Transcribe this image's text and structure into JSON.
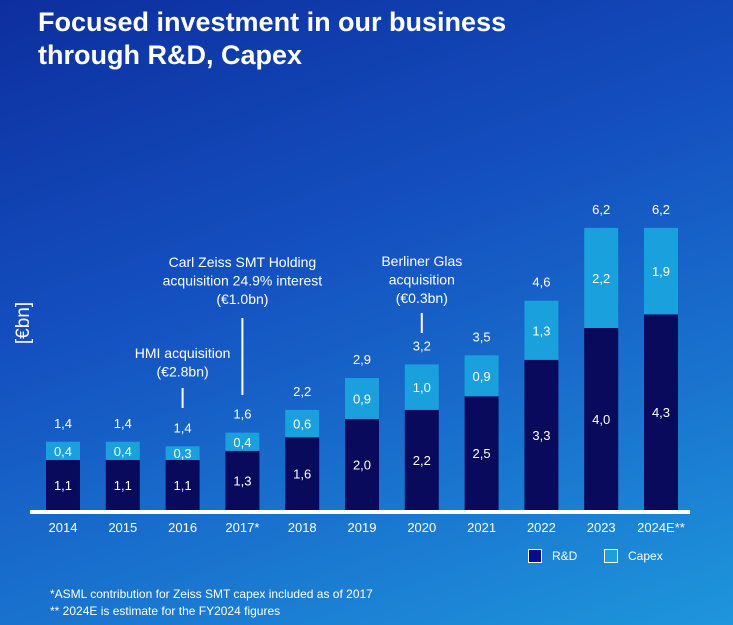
{
  "title_lines": [
    "Focused investment in our business",
    "through R&D, Capex"
  ],
  "footnotes": [
    "*ASML contribution for Zeiss SMT capex included as of 2017",
    "** 2024E is estimate for the FY2024 figures"
  ],
  "chart_data": {
    "type": "bar",
    "stacked": true,
    "ylabel": "[€bn]",
    "categories": [
      "2014",
      "2015",
      "2016",
      "2017*",
      "2018",
      "2019",
      "2020",
      "2021",
      "2022",
      "2023",
      "2024E**"
    ],
    "series": [
      {
        "name": "R&D",
        "color": "#0a0a5c",
        "values": [
          1.1,
          1.1,
          1.1,
          1.3,
          1.6,
          2.0,
          2.2,
          2.5,
          3.3,
          4.0,
          4.3
        ],
        "labels": [
          "1,1",
          "1,1",
          "1,1",
          "1,3",
          "1,6",
          "2,0",
          "2,2",
          "2,5",
          "3,3",
          "4,0",
          "4,3"
        ]
      },
      {
        "name": "Capex",
        "color": "#1aa0dc",
        "values": [
          0.4,
          0.4,
          0.3,
          0.4,
          0.6,
          0.9,
          1.0,
          0.9,
          1.3,
          2.2,
          1.9
        ],
        "labels": [
          "0,4",
          "0,4",
          "0,3",
          "0,4",
          "0,6",
          "0,9",
          "1,0",
          "0,9",
          "1,3",
          "2,2",
          "1,9"
        ]
      }
    ],
    "totals": [
      "1,4",
      "1,4",
      "1,4",
      "1,6",
      "2,2",
      "2,9",
      "3,2",
      "3,5",
      "4,6",
      "6,2",
      "6,2"
    ],
    "total_values": [
      1.4,
      1.4,
      1.4,
      1.6,
      2.2,
      2.9,
      3.2,
      3.5,
      4.6,
      6.2,
      6.2
    ],
    "annotations": [
      {
        "category": "2016",
        "lines": [
          "HMI acquisition",
          "(€2.8bn)"
        ]
      },
      {
        "category": "2017*",
        "lines": [
          "Carl Zeiss SMT Holding",
          "acquisition 24.9% interest",
          "(€1.0bn)"
        ]
      },
      {
        "category": "2020",
        "lines": [
          "Berliner Glas",
          "acquisition",
          "(€0.3bn)"
        ]
      }
    ],
    "legend": [
      "R&D",
      "Capex"
    ],
    "legend_position": "bottom-right"
  }
}
